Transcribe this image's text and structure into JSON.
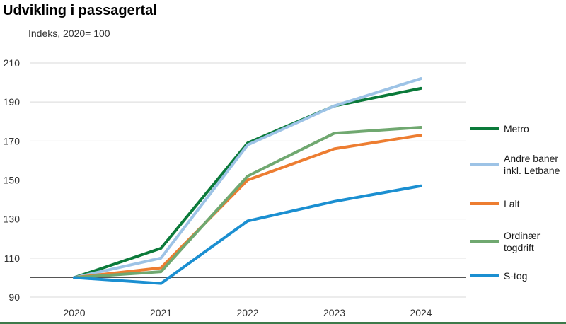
{
  "chart_data": {
    "type": "line",
    "title": "Udvikling i passagertal",
    "subtitle": "Indeks, 2020= 100",
    "xlabel": "",
    "ylabel": "",
    "categories": [
      "2020",
      "2021",
      "2022",
      "2023",
      "2024"
    ],
    "ylim": [
      90,
      210
    ],
    "yticks": [
      90,
      110,
      130,
      150,
      170,
      190,
      210
    ],
    "reference_line": 100,
    "grid": true,
    "legend_position": "right",
    "series": [
      {
        "name": "Metro",
        "color": "#0b7a3a",
        "values": [
          100,
          115,
          169,
          188,
          197
        ]
      },
      {
        "name": "Andre baner inkl. Letbane",
        "label_lines": [
          "Andre baner",
          "inkl. Letbane"
        ],
        "color": "#9dc3e6",
        "values": [
          100,
          110,
          168,
          188,
          202
        ]
      },
      {
        "name": "I alt",
        "color": "#ed7d31",
        "values": [
          100,
          105,
          150,
          166,
          173
        ]
      },
      {
        "name": "Ordinær togdrift",
        "label_lines": [
          "Ordinær",
          "togdrift"
        ],
        "color": "#70a870",
        "values": [
          100,
          103,
          152,
          174,
          177
        ]
      },
      {
        "name": "S-tog",
        "color": "#1b8fd1",
        "values": [
          100,
          97,
          129,
          139,
          147
        ]
      }
    ]
  }
}
